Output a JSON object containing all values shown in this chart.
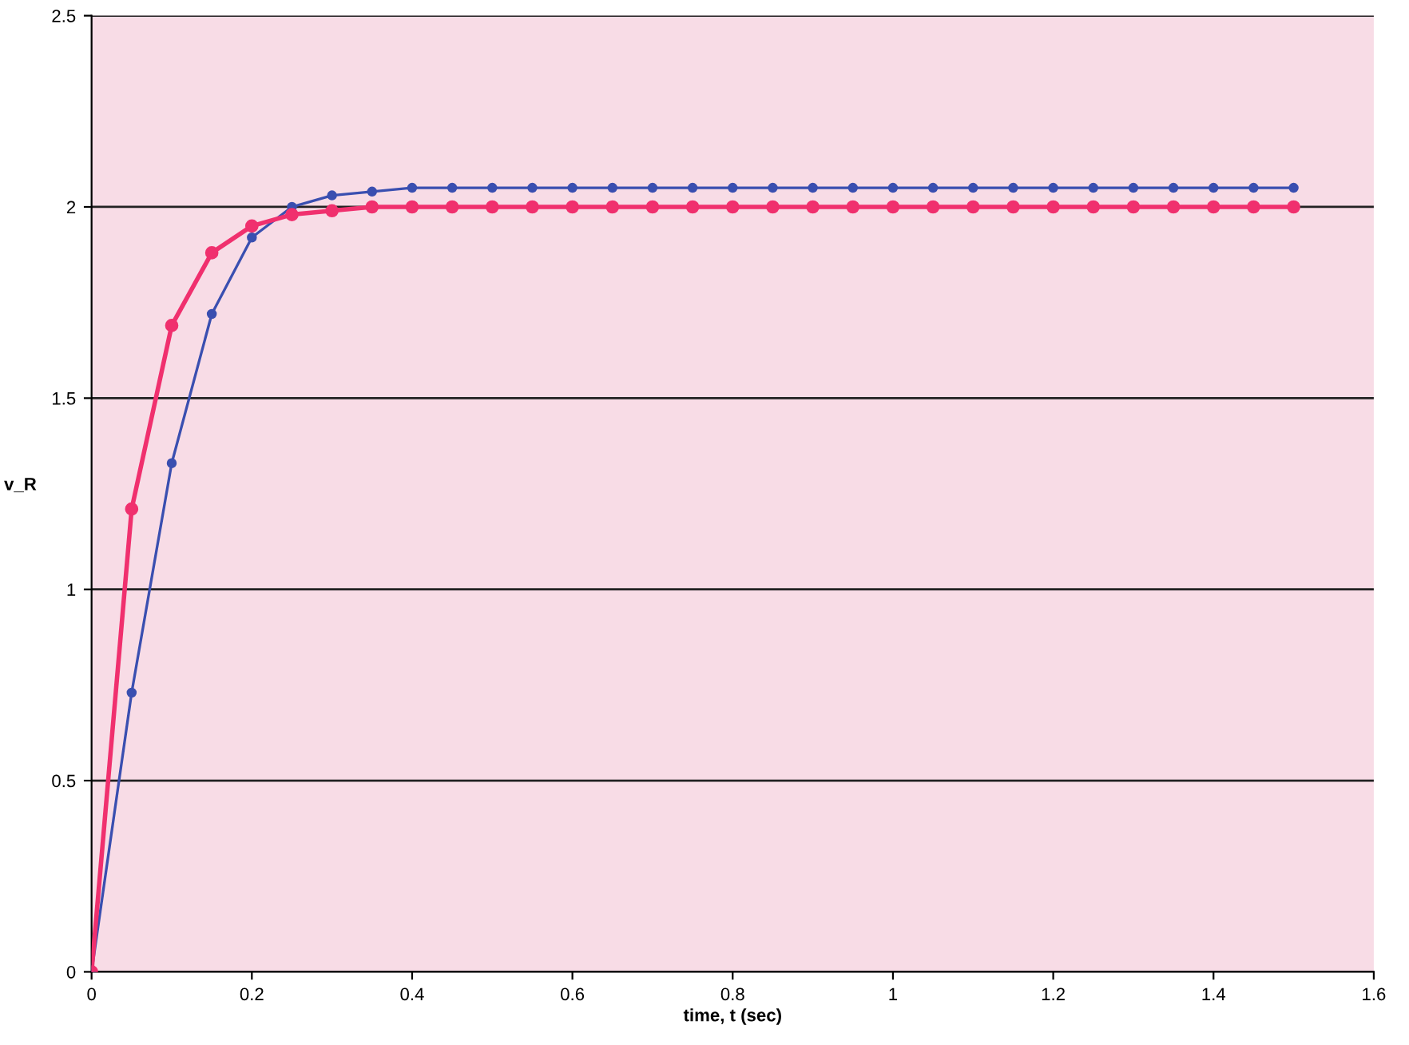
{
  "chart_data": {
    "type": "line",
    "xlabel": "time, t (sec)",
    "ylabel": "v_R",
    "x": [
      0,
      0.05,
      0.1,
      0.15,
      0.2,
      0.25,
      0.3,
      0.35,
      0.4,
      0.45,
      0.5,
      0.55,
      0.6,
      0.65,
      0.7,
      0.75,
      0.8,
      0.85,
      0.9,
      0.95,
      1.0,
      1.05,
      1.1,
      1.15,
      1.2,
      1.25,
      1.3,
      1.35,
      1.4,
      1.45,
      1.5
    ],
    "series": [
      {
        "color": "#3a4fb0",
        "marker": "circle",
        "values": [
          0,
          0.73,
          1.33,
          1.72,
          1.92,
          2.0,
          2.03,
          2.04,
          2.05,
          2.05,
          2.05,
          2.05,
          2.05,
          2.05,
          2.05,
          2.05,
          2.05,
          2.05,
          2.05,
          2.05,
          2.05,
          2.05,
          2.05,
          2.05,
          2.05,
          2.05,
          2.05,
          2.05,
          2.05,
          2.05,
          2.05
        ]
      },
      {
        "color": "#f0306e",
        "marker": "circle",
        "values": [
          0,
          1.21,
          1.69,
          1.88,
          1.95,
          1.98,
          1.99,
          2.0,
          2.0,
          2.0,
          2.0,
          2.0,
          2.0,
          2.0,
          2.0,
          2.0,
          2.0,
          2.0,
          2.0,
          2.0,
          2.0,
          2.0,
          2.0,
          2.0,
          2.0,
          2.0,
          2.0,
          2.0,
          2.0,
          2.0,
          2.0
        ]
      }
    ],
    "xlim": [
      0,
      1.6
    ],
    "xticks": [
      0,
      0.2,
      0.4,
      0.6,
      0.8,
      1,
      1.2,
      1.4,
      1.6
    ],
    "ylim": [
      0,
      2.5
    ],
    "yticks": [
      0,
      0.5,
      1,
      1.5,
      2,
      2.5
    ],
    "grid": "y",
    "legend": false
  }
}
